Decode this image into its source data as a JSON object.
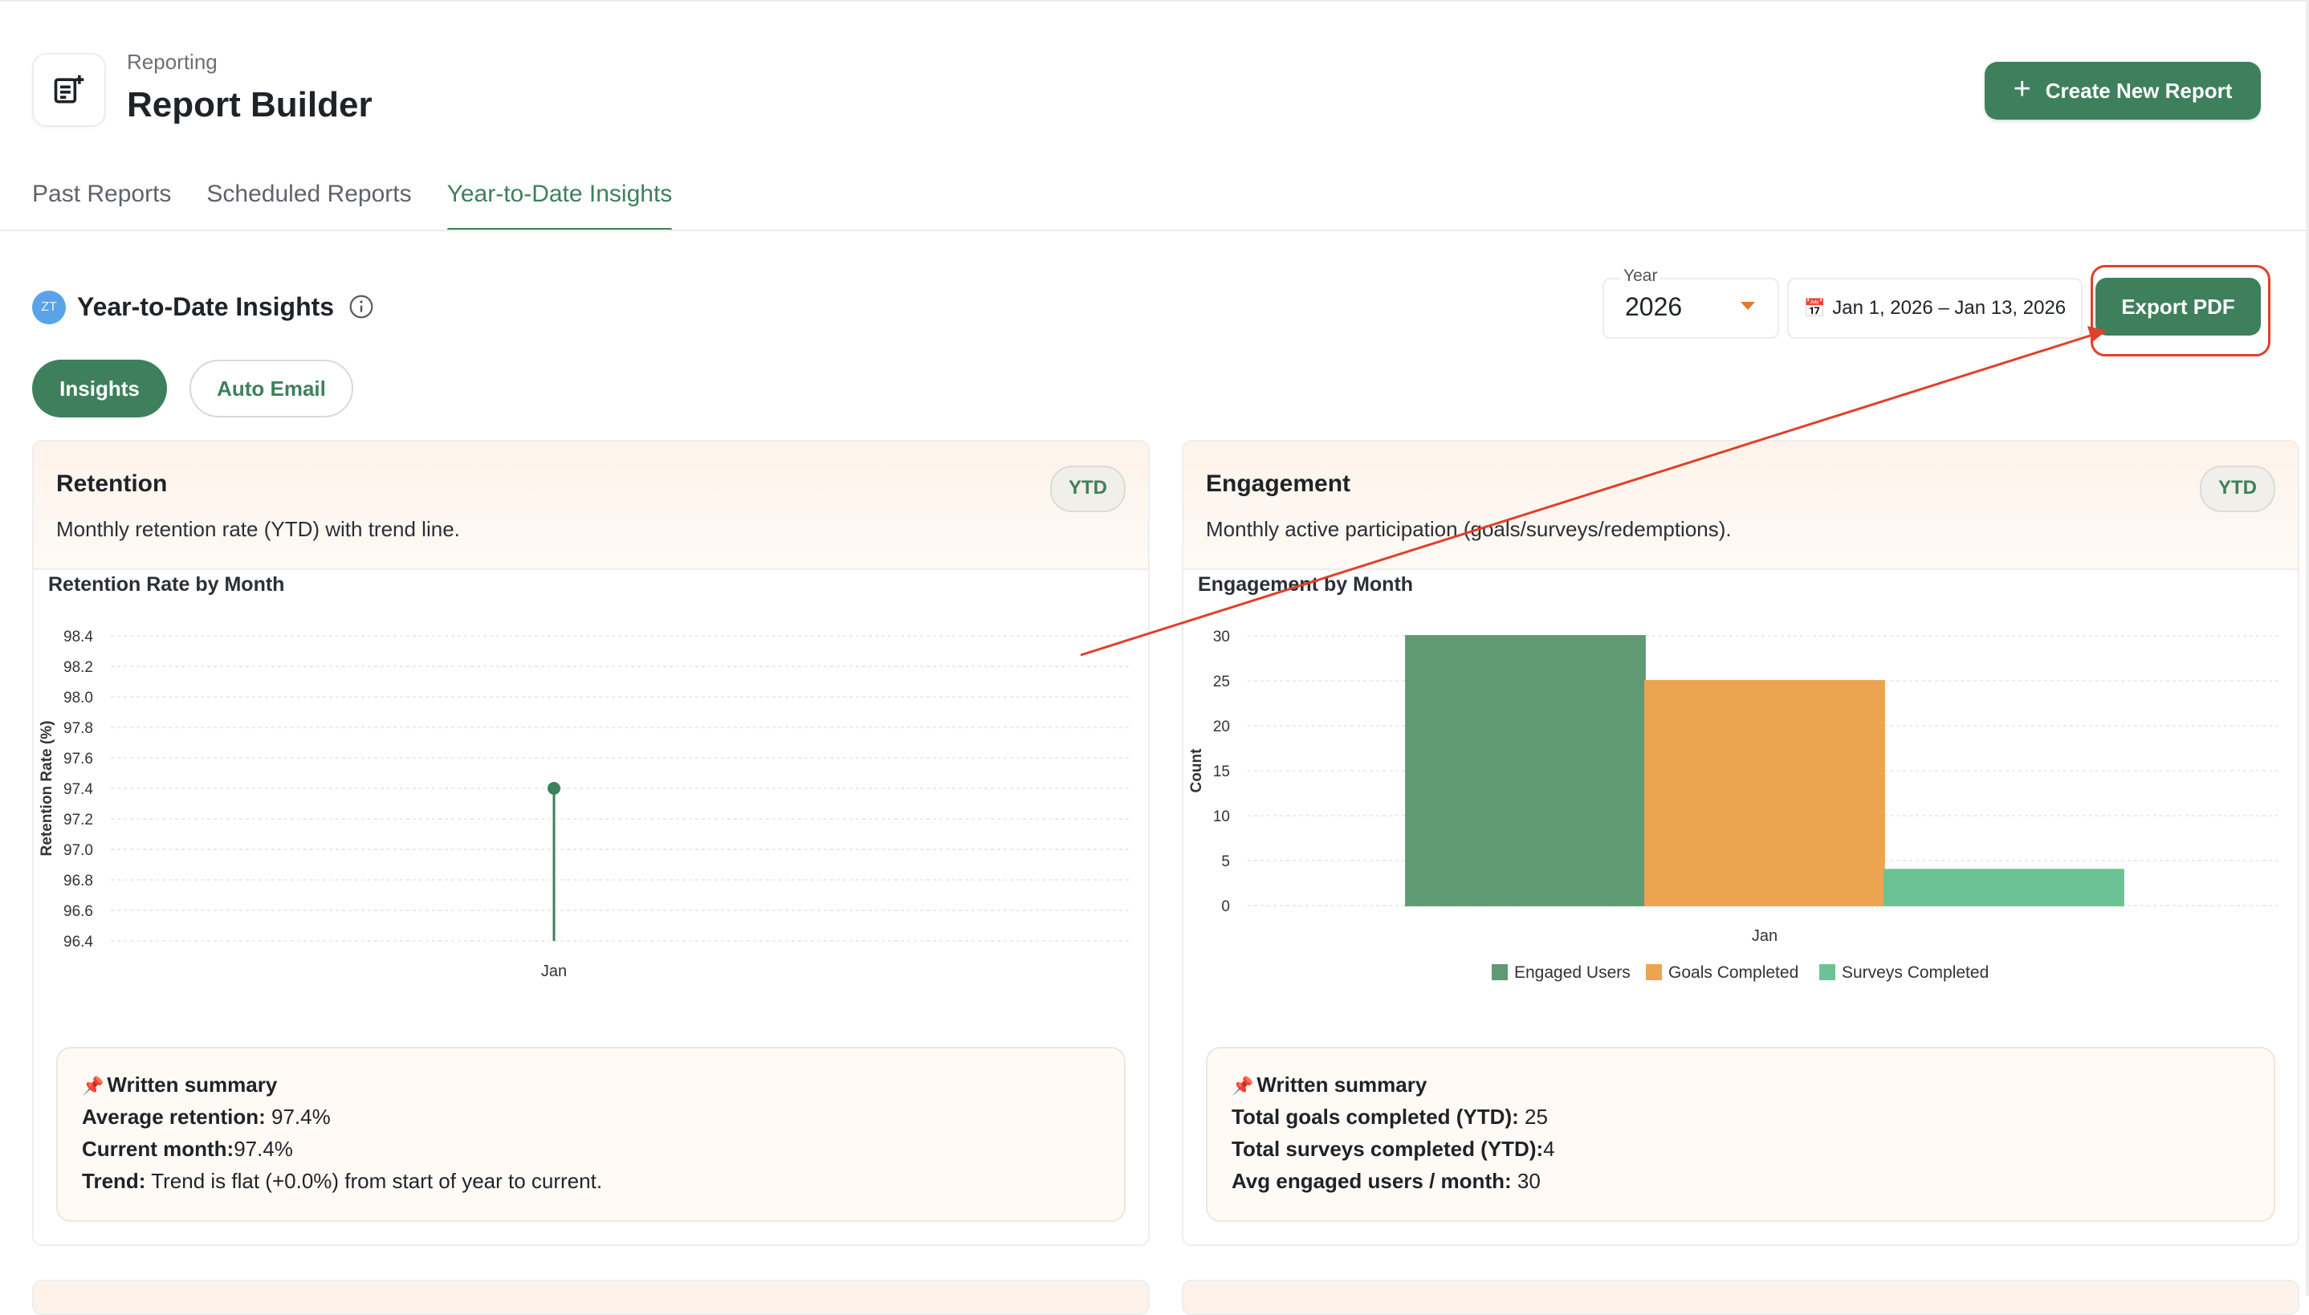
{
  "header": {
    "breadcrumb": "Reporting",
    "title": "Report Builder",
    "icon": "report-add-icon",
    "create_button_label": "Create New Report"
  },
  "tabs": [
    {
      "label": "Past Reports",
      "active": false
    },
    {
      "label": "Scheduled Reports",
      "active": false
    },
    {
      "label": "Year-to-Date Insights",
      "active": true
    }
  ],
  "section": {
    "avatar_initials": "ZT",
    "title": "Year-to-Date Insights",
    "year_label": "Year",
    "year_value": "2026",
    "date_range": "Jan 1, 2026 – Jan 13, 2026",
    "export_label": "Export PDF"
  },
  "pills": {
    "insights": "Insights",
    "auto_email": "Auto Email"
  },
  "colors": {
    "accent": "#3e805b",
    "orange": "#eca450",
    "light_green": "#6cc295",
    "annotation": "#e0402a"
  },
  "cards": {
    "retention": {
      "title": "Retention",
      "subtitle": "Monthly retention rate (YTD) with trend line.",
      "badge": "YTD",
      "summary": {
        "title": "Written summary",
        "lines": [
          {
            "label": "Average retention:",
            "value": " 97.4%"
          },
          {
            "label": "Current month:",
            "value": "97.4%"
          },
          {
            "label": "Trend:",
            "value": " Trend is flat (+0.0%) from start of year to current."
          }
        ]
      }
    },
    "engagement": {
      "title": "Engagement",
      "subtitle": "Monthly active participation (goals/surveys/redemptions).",
      "badge": "YTD",
      "summary": {
        "title": "Written summary",
        "lines": [
          {
            "label": "Total goals completed (YTD):",
            "value": " 25"
          },
          {
            "label": "Total surveys completed (YTD):",
            "value": "4"
          },
          {
            "label": "Avg engaged users / month:",
            "value": " 30"
          }
        ]
      }
    }
  },
  "chart_data": [
    {
      "type": "line",
      "title": "Retention Rate by Month",
      "xlabel": "",
      "ylabel": "Retention Rate (%)",
      "categories": [
        "Jan"
      ],
      "series": [
        {
          "values": [
            97.4
          ]
        }
      ],
      "ylim": [
        96.4,
        98.4
      ],
      "yticks": [
        "96.4",
        "96.6",
        "96.8",
        "97.0",
        "97.2",
        "97.4",
        "97.6",
        "97.8",
        "98.0",
        "98.2",
        "98.4"
      ],
      "grid": true
    },
    {
      "type": "bar",
      "title": "Engagement by Month",
      "xlabel": "",
      "ylabel": "Count",
      "categories": [
        "Jan"
      ],
      "series": [
        {
          "name": "Engaged Users",
          "values": [
            30
          ],
          "color": "#5f9a73"
        },
        {
          "name": "Goals Completed",
          "values": [
            25
          ],
          "color": "#eca450"
        },
        {
          "name": "Surveys Completed",
          "values": [
            4
          ],
          "color": "#6cc295"
        }
      ],
      "ylim": [
        0,
        30
      ],
      "yticks": [
        "0",
        "5",
        "10",
        "15",
        "20",
        "25",
        "30"
      ],
      "legend": "bottom",
      "grid": true
    }
  ]
}
